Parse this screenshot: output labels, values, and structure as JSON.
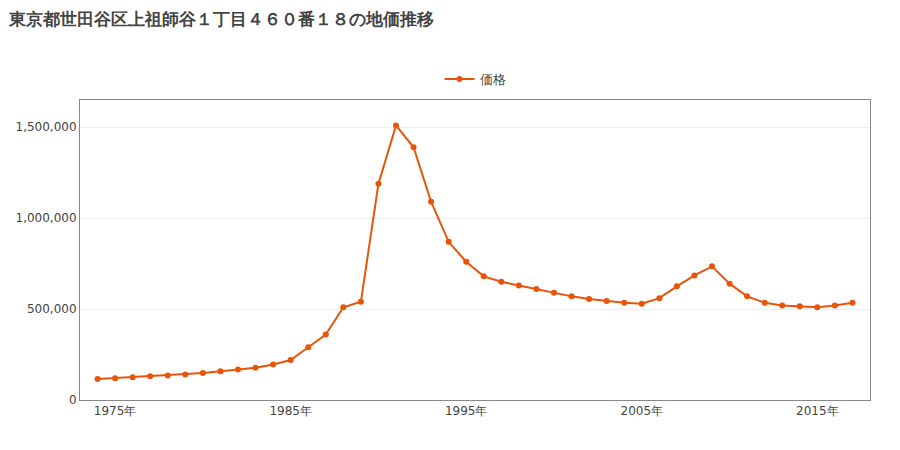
{
  "chart_data": {
    "type": "line",
    "title": "東京都世田谷区上祖師谷１丁目４６０番１８の地価推移",
    "x": [
      1974,
      1975,
      1976,
      1977,
      1978,
      1979,
      1980,
      1981,
      1982,
      1983,
      1984,
      1985,
      1986,
      1987,
      1988,
      1989,
      1990,
      1991,
      1992,
      1993,
      1994,
      1995,
      1996,
      1997,
      1998,
      1999,
      2000,
      2001,
      2002,
      2003,
      2004,
      2005,
      2006,
      2007,
      2008,
      2009,
      2010,
      2011,
      2012,
      2013,
      2014,
      2015,
      2016,
      2017
    ],
    "series": [
      {
        "name": "価格",
        "color": "#e8540a",
        "marker": "circle",
        "values": [
          115000,
          120000,
          125000,
          130000,
          135000,
          140000,
          148000,
          158000,
          168000,
          178000,
          195000,
          220000,
          290000,
          360000,
          510000,
          540000,
          1190000,
          1510000,
          1390000,
          1090000,
          870000,
          760000,
          680000,
          650000,
          630000,
          610000,
          590000,
          570000,
          555000,
          545000,
          535000,
          530000,
          560000,
          625000,
          685000,
          735000,
          640000,
          570000,
          535000,
          520000,
          515000,
          510000,
          520000,
          535000
        ]
      }
    ],
    "xlim": [
      1973,
      2018
    ],
    "xticks": [
      {
        "value": 1975,
        "label": "1975年"
      },
      {
        "value": 1985,
        "label": "1985年"
      },
      {
        "value": 1995,
        "label": "1995年"
      },
      {
        "value": 2005,
        "label": "2005年"
      },
      {
        "value": 2015,
        "label": "2015年"
      }
    ],
    "ylim": [
      0,
      1650000
    ],
    "yticks": [
      0,
      {
        "value": 500000,
        "label": "500,000"
      },
      {
        "value": 1000000,
        "label": "1,000,000"
      },
      {
        "value": 1500000,
        "label": "1,500,000"
      }
    ],
    "grid": "y",
    "legend": "top"
  }
}
